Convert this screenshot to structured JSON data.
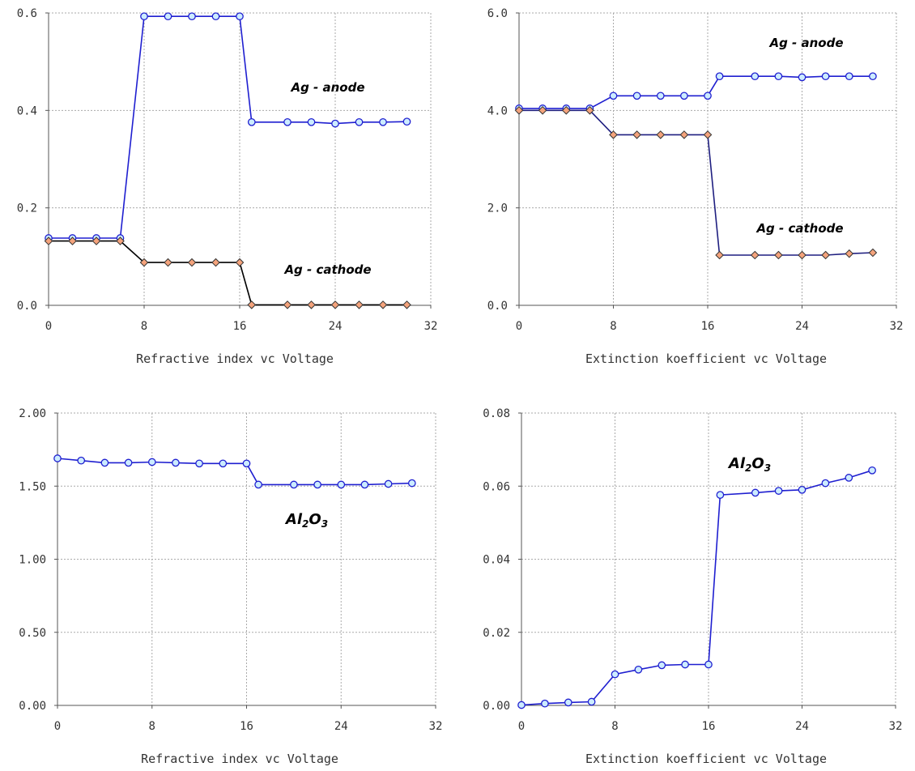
{
  "chart_data": [
    {
      "type": "line",
      "xlabel": "Refractive index vc  Voltage",
      "xlim": [
        0,
        32
      ],
      "ylim": [
        0,
        0.6
      ],
      "xticks": [
        "0",
        "8",
        "16",
        "24",
        "32"
      ],
      "yticks": [
        "0.0",
        "0.2",
        "0.4",
        "0.6"
      ],
      "grid": true,
      "x": [
        0,
        2,
        4,
        6,
        8,
        10,
        12,
        14,
        16,
        17,
        20,
        22,
        24,
        26,
        28,
        30
      ],
      "series": [
        {
          "name": "Ag - anode",
          "color": "#1f1fd0",
          "marker": "circle",
          "marker_fill": "#ccecff",
          "values": [
            0.138,
            0.138,
            0.138,
            0.138,
            0.593,
            0.593,
            0.593,
            0.593,
            0.593,
            0.376,
            0.376,
            0.376,
            0.373,
            0.376,
            0.376,
            0.377
          ]
        },
        {
          "name": "Ag - cathode",
          "color": "#000000",
          "marker": "diamond",
          "marker_fill": "#f4a37c",
          "values": [
            0.132,
            0.132,
            0.132,
            0.132,
            0.088,
            0.088,
            0.088,
            0.088,
            0.088,
            0.001,
            0.001,
            0.001,
            0.001,
            0.001,
            0.001,
            0.001
          ]
        }
      ],
      "annotations": [
        "Ag - anode",
        "Ag - cathode"
      ]
    },
    {
      "type": "line",
      "xlabel": "Extinction koefficient vc  Voltage",
      "xlim": [
        0,
        32
      ],
      "ylim": [
        0,
        6
      ],
      "xticks": [
        "0",
        "8",
        "16",
        "24",
        "32"
      ],
      "yticks": [
        "0.0",
        "2.0",
        "4.0",
        "6.0"
      ],
      "grid": true,
      "x": [
        0,
        2,
        4,
        6,
        8,
        10,
        12,
        14,
        16,
        17,
        20,
        22,
        24,
        26,
        28,
        30
      ],
      "series": [
        {
          "name": "Ag - anode",
          "color": "#1f1fd0",
          "marker": "circle",
          "marker_fill": "#ccecff",
          "values": [
            4.04,
            4.04,
            4.04,
            4.04,
            4.3,
            4.3,
            4.3,
            4.3,
            4.3,
            4.7,
            4.7,
            4.7,
            4.68,
            4.7,
            4.7,
            4.7
          ]
        },
        {
          "name": "Ag - cathode",
          "color": "#1f1f80",
          "marker": "diamond",
          "marker_fill": "#f4a37c",
          "values": [
            4.0,
            4.0,
            4.0,
            4.0,
            3.5,
            3.5,
            3.5,
            3.5,
            3.5,
            1.03,
            1.03,
            1.03,
            1.03,
            1.03,
            1.06,
            1.08
          ]
        }
      ],
      "annotations": [
        "Ag - anode",
        "Ag - cathode"
      ]
    },
    {
      "type": "line",
      "xlabel": "Refractive index vc  Voltage",
      "xlim": [
        0,
        32
      ],
      "ylim": [
        0,
        2
      ],
      "xticks": [
        "0",
        "8",
        "16",
        "24",
        "32"
      ],
      "yticks": [
        "0.00",
        "0.50",
        "1.00",
        "1.50",
        "2.00"
      ],
      "grid": true,
      "x": [
        0,
        2,
        4,
        6,
        8,
        10,
        12,
        14,
        16,
        17,
        20,
        22,
        24,
        26,
        28,
        30
      ],
      "series": [
        {
          "name": "Al2O3",
          "color": "#1f1fd0",
          "marker": "circle",
          "marker_fill": "#ccecff",
          "values": [
            1.69,
            1.675,
            1.66,
            1.66,
            1.665,
            1.66,
            1.655,
            1.655,
            1.655,
            1.51,
            1.51,
            1.51,
            1.51,
            1.51,
            1.515,
            1.52
          ]
        }
      ],
      "annotations": [
        "Al2O3"
      ]
    },
    {
      "type": "line",
      "xlabel": "Extinction koefficient vc  Voltage",
      "xlim": [
        0,
        32
      ],
      "ylim": [
        0,
        0.08
      ],
      "xticks": [
        "0",
        "8",
        "16",
        "24",
        "32"
      ],
      "yticks": [
        "0.00",
        "0.02",
        "0.04",
        "0.06",
        "0.08"
      ],
      "grid": true,
      "x": [
        0,
        2,
        4,
        6,
        8,
        10,
        12,
        14,
        16,
        17,
        20,
        22,
        24,
        26,
        28,
        30
      ],
      "series": [
        {
          "name": "Al2O3",
          "color": "#1f1fd0",
          "marker": "circle",
          "marker_fill": "#ccecff",
          "values": [
            0.0001,
            0.0005,
            0.0008,
            0.001,
            0.0085,
            0.0098,
            0.011,
            0.0112,
            0.0112,
            0.0576,
            0.0582,
            0.0587,
            0.059,
            0.0608,
            0.0623,
            0.0643
          ]
        }
      ],
      "annotations": [
        "Al2O3"
      ]
    }
  ]
}
